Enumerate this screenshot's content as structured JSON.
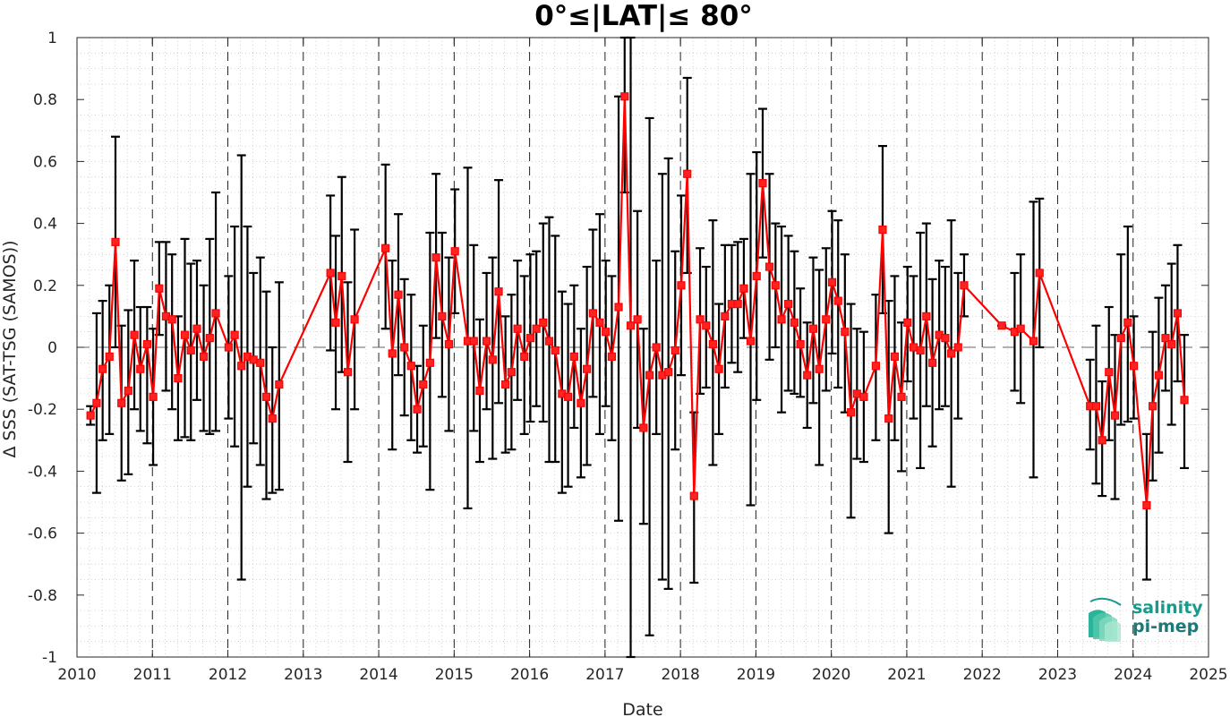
{
  "chart_data": {
    "type": "line",
    "title": "0°≤|LAT|≤ 80°",
    "xlabel": "Date",
    "ylabel": "Δ SSS (SAT-TSG (SAMOS))",
    "xlim": [
      "2010-01-01",
      "2025-01-01"
    ],
    "ylim": [
      -1,
      1
    ],
    "x_ticks": [
      "2010",
      "2011",
      "2012",
      "2013",
      "2014",
      "2015",
      "2016",
      "2017",
      "2018",
      "2019",
      "2020",
      "2021",
      "2022",
      "2023",
      "2024",
      "2025"
    ],
    "y_ticks": [
      "-1",
      "-0.8",
      "-0.6",
      "-0.4",
      "-0.2",
      "0",
      "0.2",
      "0.4",
      "0.6",
      "0.8",
      "1"
    ],
    "grid": "minor dotted",
    "year_boundary_lines": "dashed vertical",
    "zero_line": "dashed horizontal",
    "colors": {
      "series": "#ff0000",
      "errorbar": "#000000",
      "marker_face": "#ff2222"
    },
    "series": [
      {
        "x": 2010.18,
        "y": -0.22,
        "lo": -0.25,
        "hi": -0.19
      },
      {
        "x": 2010.26,
        "y": -0.18,
        "lo": -0.47,
        "hi": 0.11
      },
      {
        "x": 2010.34,
        "y": -0.07,
        "lo": -0.3,
        "hi": 0.15
      },
      {
        "x": 2010.43,
        "y": -0.03,
        "lo": -0.28,
        "hi": 0.2
      },
      {
        "x": 2010.51,
        "y": 0.34,
        "lo": 0.0,
        "hi": 0.68
      },
      {
        "x": 2010.59,
        "y": -0.18,
        "lo": -0.43,
        "hi": 0.07
      },
      {
        "x": 2010.68,
        "y": -0.14,
        "lo": -0.41,
        "hi": 0.12
      },
      {
        "x": 2010.76,
        "y": 0.04,
        "lo": -0.2,
        "hi": 0.28
      },
      {
        "x": 2010.84,
        "y": -0.07,
        "lo": -0.27,
        "hi": 0.13
      },
      {
        "x": 2010.93,
        "y": 0.01,
        "lo": -0.31,
        "hi": 0.13
      },
      {
        "x": 2011.01,
        "y": -0.16,
        "lo": -0.38,
        "hi": 0.06
      },
      {
        "x": 2011.09,
        "y": 0.19,
        "lo": 0.04,
        "hi": 0.34
      },
      {
        "x": 2011.18,
        "y": 0.1,
        "lo": -0.14,
        "hi": 0.34
      },
      {
        "x": 2011.26,
        "y": 0.09,
        "lo": -0.2,
        "hi": 0.3
      },
      {
        "x": 2011.34,
        "y": -0.1,
        "lo": -0.3,
        "hi": 0.1
      },
      {
        "x": 2011.43,
        "y": 0.04,
        "lo": -0.29,
        "hi": 0.35
      },
      {
        "x": 2011.51,
        "y": -0.01,
        "lo": -0.3,
        "hi": 0.27
      },
      {
        "x": 2011.59,
        "y": 0.06,
        "lo": -0.17,
        "hi": 0.28
      },
      {
        "x": 2011.68,
        "y": -0.03,
        "lo": -0.27,
        "hi": 0.2
      },
      {
        "x": 2011.76,
        "y": 0.03,
        "lo": -0.28,
        "hi": 0.35
      },
      {
        "x": 2011.84,
        "y": 0.11,
        "lo": -0.27,
        "hi": 0.5
      },
      {
        "x": 2012.01,
        "y": 0.0,
        "lo": -0.23,
        "hi": 0.23
      },
      {
        "x": 2012.09,
        "y": 0.04,
        "lo": -0.32,
        "hi": 0.39
      },
      {
        "x": 2012.18,
        "y": -0.06,
        "lo": -0.75,
        "hi": 0.62
      },
      {
        "x": 2012.26,
        "y": -0.03,
        "lo": -0.45,
        "hi": 0.39
      },
      {
        "x": 2012.34,
        "y": -0.04,
        "lo": -0.31,
        "hi": 0.24
      },
      {
        "x": 2012.43,
        "y": -0.05,
        "lo": -0.38,
        "hi": 0.29
      },
      {
        "x": 2012.51,
        "y": -0.16,
        "lo": -0.49,
        "hi": 0.18
      },
      {
        "x": 2012.59,
        "y": -0.23,
        "lo": -0.47,
        "hi": 0.0
      },
      {
        "x": 2012.68,
        "y": -0.12,
        "lo": -0.46,
        "hi": 0.21
      },
      {
        "x": 2013.36,
        "y": 0.24,
        "lo": -0.01,
        "hi": 0.49
      },
      {
        "x": 2013.43,
        "y": 0.08,
        "lo": -0.2,
        "hi": 0.36
      },
      {
        "x": 2013.51,
        "y": 0.23,
        "lo": -0.08,
        "hi": 0.55
      },
      {
        "x": 2013.59,
        "y": -0.08,
        "lo": -0.37,
        "hi": 0.21
      },
      {
        "x": 2013.68,
        "y": 0.09,
        "lo": -0.2,
        "hi": 0.38
      },
      {
        "x": 2014.09,
        "y": 0.32,
        "lo": 0.06,
        "hi": 0.59
      },
      {
        "x": 2014.18,
        "y": -0.02,
        "lo": -0.33,
        "hi": 0.28
      },
      {
        "x": 2014.26,
        "y": 0.17,
        "lo": -0.09,
        "hi": 0.43
      },
      {
        "x": 2014.34,
        "y": 0.0,
        "lo": -0.22,
        "hi": 0.22
      },
      {
        "x": 2014.43,
        "y": -0.06,
        "lo": -0.3,
        "hi": 0.17
      },
      {
        "x": 2014.51,
        "y": -0.2,
        "lo": -0.34,
        "hi": -0.06
      },
      {
        "x": 2014.59,
        "y": -0.12,
        "lo": -0.32,
        "hi": 0.07
      },
      {
        "x": 2014.68,
        "y": -0.05,
        "lo": -0.46,
        "hi": 0.37
      },
      {
        "x": 2014.76,
        "y": 0.29,
        "lo": 0.03,
        "hi": 0.56
      },
      {
        "x": 2014.84,
        "y": 0.1,
        "lo": -0.16,
        "hi": 0.37
      },
      {
        "x": 2014.93,
        "y": 0.01,
        "lo": -0.27,
        "hi": 0.29
      },
      {
        "x": 2015.01,
        "y": 0.31,
        "lo": 0.11,
        "hi": 0.51
      },
      {
        "x": 2015.18,
        "y": 0.02,
        "lo": -0.52,
        "hi": 0.58
      },
      {
        "x": 2015.26,
        "y": 0.02,
        "lo": -0.27,
        "hi": 0.33
      },
      {
        "x": 2015.34,
        "y": -0.14,
        "lo": -0.37,
        "hi": 0.09
      },
      {
        "x": 2015.43,
        "y": 0.02,
        "lo": -0.2,
        "hi": 0.24
      },
      {
        "x": 2015.51,
        "y": -0.04,
        "lo": -0.36,
        "hi": 0.29
      },
      {
        "x": 2015.59,
        "y": 0.18,
        "lo": -0.18,
        "hi": 0.54
      },
      {
        "x": 2015.68,
        "y": -0.12,
        "lo": -0.34,
        "hi": 0.1
      },
      {
        "x": 2015.76,
        "y": -0.08,
        "lo": -0.33,
        "hi": 0.17
      },
      {
        "x": 2015.84,
        "y": 0.06,
        "lo": -0.17,
        "hi": 0.28
      },
      {
        "x": 2015.93,
        "y": -0.03,
        "lo": -0.28,
        "hi": 0.23
      },
      {
        "x": 2016.01,
        "y": 0.03,
        "lo": -0.24,
        "hi": 0.3
      },
      {
        "x": 2016.09,
        "y": 0.06,
        "lo": -0.19,
        "hi": 0.31
      },
      {
        "x": 2016.18,
        "y": 0.08,
        "lo": -0.24,
        "hi": 0.4
      },
      {
        "x": 2016.26,
        "y": 0.02,
        "lo": -0.37,
        "hi": 0.42
      },
      {
        "x": 2016.34,
        "y": -0.01,
        "lo": -0.37,
        "hi": 0.36
      },
      {
        "x": 2016.43,
        "y": -0.15,
        "lo": -0.47,
        "hi": 0.18
      },
      {
        "x": 2016.51,
        "y": -0.16,
        "lo": -0.45,
        "hi": 0.14
      },
      {
        "x": 2016.59,
        "y": -0.03,
        "lo": -0.26,
        "hi": 0.2
      },
      {
        "x": 2016.68,
        "y": -0.18,
        "lo": -0.42,
        "hi": 0.06
      },
      {
        "x": 2016.76,
        "y": -0.07,
        "lo": -0.38,
        "hi": 0.26
      },
      {
        "x": 2016.84,
        "y": 0.11,
        "lo": -0.16,
        "hi": 0.38
      },
      {
        "x": 2016.93,
        "y": 0.08,
        "lo": -0.28,
        "hi": 0.43
      },
      {
        "x": 2017.01,
        "y": 0.05,
        "lo": -0.19,
        "hi": 0.28
      },
      {
        "x": 2017.09,
        "y": -0.03,
        "lo": -0.3,
        "hi": 0.23
      },
      {
        "x": 2017.18,
        "y": 0.13,
        "lo": -0.56,
        "hi": 0.81
      },
      {
        "x": 2017.26,
        "y": 0.81,
        "lo": 0.5,
        "hi": 1.0
      },
      {
        "x": 2017.34,
        "y": 0.07,
        "lo": -1.0,
        "hi": 1.0
      },
      {
        "x": 2017.43,
        "y": 0.09,
        "lo": -0.26,
        "hi": 0.44
      },
      {
        "x": 2017.51,
        "y": -0.26,
        "lo": -0.57,
        "hi": 0.06
      },
      {
        "x": 2017.59,
        "y": -0.09,
        "lo": -0.93,
        "hi": 0.74
      },
      {
        "x": 2017.68,
        "y": 0.0,
        "lo": -0.28,
        "hi": 0.28
      },
      {
        "x": 2017.76,
        "y": -0.09,
        "lo": -0.75,
        "hi": 0.56
      },
      {
        "x": 2017.84,
        "y": -0.08,
        "lo": -0.78,
        "hi": 0.61
      },
      {
        "x": 2017.93,
        "y": -0.01,
        "lo": -0.33,
        "hi": 0.31
      },
      {
        "x": 2018.01,
        "y": 0.2,
        "lo": -0.09,
        "hi": 0.49
      },
      {
        "x": 2018.09,
        "y": 0.56,
        "lo": 0.24,
        "hi": 0.87
      },
      {
        "x": 2018.18,
        "y": -0.48,
        "lo": -0.76,
        "hi": -0.21
      },
      {
        "x": 2018.26,
        "y": 0.09,
        "lo": -0.15,
        "hi": 0.32
      },
      {
        "x": 2018.34,
        "y": 0.07,
        "lo": -0.13,
        "hi": 0.26
      },
      {
        "x": 2018.43,
        "y": 0.01,
        "lo": -0.38,
        "hi": 0.41
      },
      {
        "x": 2018.51,
        "y": -0.07,
        "lo": -0.28,
        "hi": 0.14
      },
      {
        "x": 2018.59,
        "y": 0.1,
        "lo": -0.13,
        "hi": 0.33
      },
      {
        "x": 2018.68,
        "y": 0.14,
        "lo": -0.05,
        "hi": 0.33
      },
      {
        "x": 2018.76,
        "y": 0.14,
        "lo": -0.08,
        "hi": 0.34
      },
      {
        "x": 2018.84,
        "y": 0.19,
        "lo": 0.03,
        "hi": 0.35
      },
      {
        "x": 2018.93,
        "y": 0.02,
        "lo": -0.51,
        "hi": 0.56
      },
      {
        "x": 2019.01,
        "y": 0.23,
        "lo": -0.17,
        "hi": 0.63
      },
      {
        "x": 2019.09,
        "y": 0.53,
        "lo": 0.29,
        "hi": 0.77
      },
      {
        "x": 2019.18,
        "y": 0.26,
        "lo": -0.04,
        "hi": 0.56
      },
      {
        "x": 2019.26,
        "y": 0.2,
        "lo": 0.0,
        "hi": 0.4
      },
      {
        "x": 2019.34,
        "y": 0.09,
        "lo": -0.21,
        "hi": 0.39
      },
      {
        "x": 2019.43,
        "y": 0.14,
        "lo": -0.14,
        "hi": 0.36
      },
      {
        "x": 2019.51,
        "y": 0.08,
        "lo": -0.15,
        "hi": 0.31
      },
      {
        "x": 2019.59,
        "y": 0.01,
        "lo": -0.16,
        "hi": 0.19
      },
      {
        "x": 2019.68,
        "y": -0.09,
        "lo": -0.26,
        "hi": 0.08
      },
      {
        "x": 2019.76,
        "y": 0.06,
        "lo": -0.18,
        "hi": 0.29
      },
      {
        "x": 2019.84,
        "y": -0.07,
        "lo": -0.38,
        "hi": 0.25
      },
      {
        "x": 2019.93,
        "y": 0.09,
        "lo": -0.14,
        "hi": 0.32
      },
      {
        "x": 2020.01,
        "y": 0.21,
        "lo": -0.02,
        "hi": 0.44
      },
      {
        "x": 2020.09,
        "y": 0.15,
        "lo": -0.13,
        "hi": 0.41
      },
      {
        "x": 2020.18,
        "y": 0.05,
        "lo": -0.21,
        "hi": 0.3
      },
      {
        "x": 2020.26,
        "y": -0.21,
        "lo": -0.55,
        "hi": 0.14
      },
      {
        "x": 2020.34,
        "y": -0.15,
        "lo": -0.36,
        "hi": 0.06
      },
      {
        "x": 2020.43,
        "y": -0.16,
        "lo": -0.37,
        "hi": 0.05
      },
      {
        "x": 2020.59,
        "y": -0.06,
        "lo": -0.3,
        "hi": 0.17
      },
      {
        "x": 2020.68,
        "y": 0.38,
        "lo": 0.11,
        "hi": 0.65
      },
      {
        "x": 2020.76,
        "y": -0.23,
        "lo": -0.6,
        "hi": 0.15
      },
      {
        "x": 2020.84,
        "y": -0.03,
        "lo": -0.3,
        "hi": 0.23
      },
      {
        "x": 2020.93,
        "y": -0.16,
        "lo": -0.4,
        "hi": 0.08
      },
      {
        "x": 2021.01,
        "y": 0.08,
        "lo": -0.11,
        "hi": 0.26
      },
      {
        "x": 2021.09,
        "y": 0.0,
        "lo": -0.23,
        "hi": 0.23
      },
      {
        "x": 2021.18,
        "y": -0.01,
        "lo": -0.39,
        "hi": 0.37
      },
      {
        "x": 2021.26,
        "y": 0.1,
        "lo": -0.19,
        "hi": 0.4
      },
      {
        "x": 2021.34,
        "y": -0.05,
        "lo": -0.32,
        "hi": 0.22
      },
      {
        "x": 2021.43,
        "y": 0.04,
        "lo": -0.2,
        "hi": 0.28
      },
      {
        "x": 2021.51,
        "y": 0.03,
        "lo": -0.19,
        "hi": 0.26
      },
      {
        "x": 2021.59,
        "y": -0.02,
        "lo": -0.45,
        "hi": 0.41
      },
      {
        "x": 2021.68,
        "y": 0.0,
        "lo": -0.23,
        "hi": 0.24
      },
      {
        "x": 2021.76,
        "y": 0.2,
        "lo": 0.1,
        "hi": 0.3
      },
      {
        "x": 2022.26,
        "y": 0.07,
        "lo": 0.07,
        "hi": 0.07
      },
      {
        "x": 2022.43,
        "y": 0.05,
        "lo": -0.14,
        "hi": 0.24
      },
      {
        "x": 2022.51,
        "y": 0.06,
        "lo": -0.18,
        "hi": 0.3
      },
      {
        "x": 2022.68,
        "y": 0.02,
        "lo": -0.42,
        "hi": 0.47
      },
      {
        "x": 2022.76,
        "y": 0.24,
        "lo": 0.0,
        "hi": 0.48
      },
      {
        "x": 2023.43,
        "y": -0.19,
        "lo": -0.33,
        "hi": -0.04
      },
      {
        "x": 2023.51,
        "y": -0.19,
        "lo": -0.44,
        "hi": 0.07
      },
      {
        "x": 2023.59,
        "y": -0.3,
        "lo": -0.48,
        "hi": -0.11
      },
      {
        "x": 2023.68,
        "y": -0.08,
        "lo": -0.3,
        "hi": 0.13
      },
      {
        "x": 2023.76,
        "y": -0.22,
        "lo": -0.49,
        "hi": 0.04
      },
      {
        "x": 2023.84,
        "y": 0.03,
        "lo": -0.25,
        "hi": 0.3
      },
      {
        "x": 2023.93,
        "y": 0.08,
        "lo": -0.24,
        "hi": 0.39
      },
      {
        "x": 2024.01,
        "y": -0.06,
        "lo": -0.23,
        "hi": 0.1
      },
      {
        "x": 2024.18,
        "y": -0.51,
        "lo": -0.75,
        "hi": -0.28
      },
      {
        "x": 2024.26,
        "y": -0.19,
        "lo": -0.43,
        "hi": 0.05
      },
      {
        "x": 2024.34,
        "y": -0.09,
        "lo": -0.34,
        "hi": 0.16
      },
      {
        "x": 2024.43,
        "y": 0.03,
        "lo": -0.14,
        "hi": 0.2
      },
      {
        "x": 2024.51,
        "y": 0.01,
        "lo": -0.25,
        "hi": 0.27
      },
      {
        "x": 2024.59,
        "y": 0.11,
        "lo": -0.11,
        "hi": 0.33
      },
      {
        "x": 2024.68,
        "y": -0.17,
        "lo": -0.39,
        "hi": 0.04
      }
    ]
  },
  "logo": {
    "line1": "salinity",
    "line2": "pi-mep",
    "color": "#1a9a8a"
  }
}
